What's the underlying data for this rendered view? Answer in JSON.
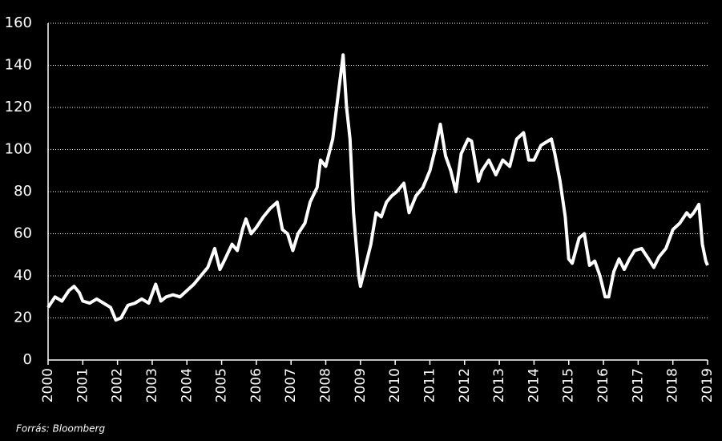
{
  "chart_data": {
    "type": "line",
    "source": "Forrás: Bloomberg",
    "color": "#ffffff",
    "grid": true,
    "x": [
      2000.0,
      2000.2,
      2000.4,
      2000.6,
      2000.75,
      2000.9,
      2001.0,
      2001.2,
      2001.4,
      2001.6,
      2001.8,
      2001.95,
      2002.1,
      2002.3,
      2002.5,
      2002.7,
      2002.9,
      2003.1,
      2003.25,
      2003.4,
      2003.6,
      2003.8,
      2004.0,
      2004.2,
      2004.4,
      2004.6,
      2004.8,
      2004.95,
      2005.1,
      2005.3,
      2005.45,
      2005.6,
      2005.7,
      2005.85,
      2006.0,
      2006.2,
      2006.4,
      2006.6,
      2006.75,
      2006.9,
      2007.05,
      2007.2,
      2007.4,
      2007.55,
      2007.75,
      2007.85,
      2008.0,
      2008.2,
      2008.35,
      2008.5,
      2008.6,
      2008.7,
      2008.8,
      2008.95,
      2009.0,
      2009.15,
      2009.3,
      2009.45,
      2009.6,
      2009.75,
      2009.9,
      2010.05,
      2010.25,
      2010.4,
      2010.6,
      2010.8,
      2011.0,
      2011.15,
      2011.3,
      2011.45,
      2011.6,
      2011.75,
      2011.9,
      2012.1,
      2012.2,
      2012.4,
      2012.5,
      2012.7,
      2012.9,
      2013.1,
      2013.3,
      2013.5,
      2013.7,
      2013.85,
      2014.0,
      2014.2,
      2014.4,
      2014.5,
      2014.6,
      2014.75,
      2014.9,
      2015.0,
      2015.1,
      2015.3,
      2015.45,
      2015.6,
      2015.75,
      2015.9,
      2016.05,
      2016.15,
      2016.3,
      2016.45,
      2016.6,
      2016.75,
      2016.9,
      2017.1,
      2017.3,
      2017.45,
      2017.6,
      2017.8,
      2018.0,
      2018.2,
      2018.4,
      2018.5,
      2018.6,
      2018.75,
      2018.85,
      2018.95,
      2019.0
    ],
    "values": [
      25,
      30,
      28,
      33,
      35,
      32,
      28,
      27,
      29,
      27,
      25,
      19,
      20,
      26,
      27,
      29,
      27,
      36,
      28,
      30,
      31,
      30,
      33,
      36,
      40,
      44,
      53,
      43,
      48,
      55,
      52,
      62,
      67,
      60,
      63,
      68,
      72,
      75,
      62,
      60,
      52,
      60,
      65,
      75,
      82,
      95,
      92,
      105,
      125,
      145,
      120,
      105,
      70,
      40,
      35,
      45,
      55,
      70,
      68,
      75,
      78,
      80,
      84,
      70,
      78,
      82,
      90,
      100,
      112,
      97,
      90,
      80,
      98,
      105,
      104,
      85,
      90,
      95,
      88,
      95,
      92,
      105,
      108,
      95,
      95,
      102,
      104,
      105,
      98,
      85,
      68,
      48,
      46,
      58,
      60,
      45,
      47,
      40,
      30,
      30,
      42,
      48,
      43,
      48,
      52,
      53,
      48,
      44,
      49,
      53,
      62,
      65,
      70,
      68,
      70,
      74,
      55,
      47,
      45
    ],
    "xlim": [
      2000,
      2019
    ],
    "xticks": [
      2000,
      2001,
      2002,
      2003,
      2004,
      2005,
      2006,
      2007,
      2008,
      2009,
      2010,
      2011,
      2012,
      2013,
      2014,
      2015,
      2016,
      2017,
      2018,
      2019
    ],
    "ylim": [
      0,
      160
    ],
    "yticks": [
      0,
      20,
      40,
      60,
      80,
      100,
      120,
      140,
      160
    ]
  }
}
